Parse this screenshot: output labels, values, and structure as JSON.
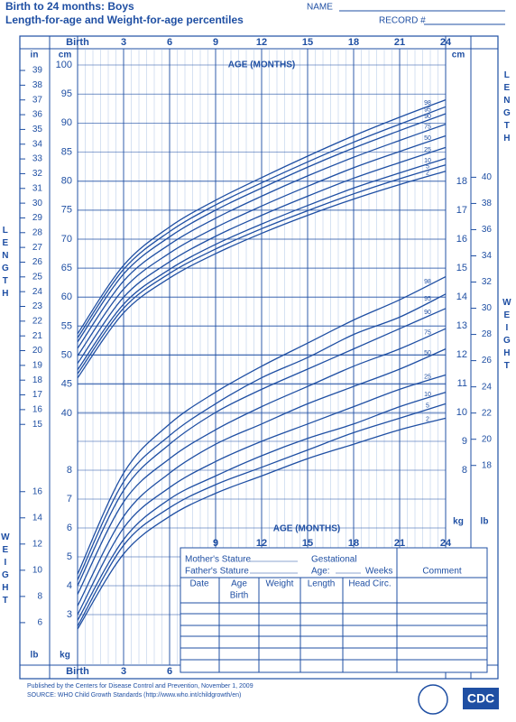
{
  "form": {
    "title": "Birth to 24 months: Boys",
    "subtitle": "Length-for-age and Weight-for-age percentiles",
    "name_label": "NAME",
    "record_label": "RECORD #",
    "side_length": "LENGTH",
    "side_weight": "WEIGHT",
    "table": {
      "mothers_stature": "Mother's Stature",
      "fathers_stature": "Father's Stature",
      "gestational": "Gestational",
      "age": "Age:",
      "weeks": "Weeks",
      "comment": "Comment",
      "headers": [
        "Date",
        "Age",
        "Weight",
        "Length",
        "Head Circ."
      ],
      "first_age": "Birth"
    },
    "footer": [
      "Published by the Centers for Disease Control and Prevention, November 1, 2009",
      "SOURCE: WHO Child Growth Standards (http://www.who.int/childgrowth/en)"
    ],
    "logo": "CDC"
  },
  "chart_data": [
    {
      "type": "line",
      "x_label": "AGE (MONTHS)",
      "x": [
        0,
        3,
        6,
        9,
        12,
        15,
        18,
        21,
        24
      ],
      "xlim": [
        0,
        24
      ],
      "xticks": [
        {
          "value": 0,
          "label": "Birth"
        },
        3,
        6,
        9,
        12,
        15,
        18,
        21,
        24
      ],
      "y_unit": "cm",
      "ylim": [
        40,
        100
      ],
      "yticks": [
        40,
        45,
        50,
        55,
        60,
        65,
        70,
        75,
        80,
        85,
        90,
        95,
        100
      ],
      "y2_unit": "in",
      "y2lim": [
        15.748,
        39.37
      ],
      "y2ticks": [
        15,
        16,
        17,
        18,
        19,
        20,
        21,
        22,
        23,
        24,
        25,
        26,
        27,
        28,
        29,
        30,
        31,
        32,
        33,
        34,
        35,
        36,
        37,
        38,
        39
      ],
      "series": [
        {
          "name": "2",
          "color": "#1f4fa3",
          "values": [
            46.1,
            57.3,
            63.3,
            67.5,
            71.0,
            74.1,
            76.9,
            79.4,
            81.7
          ]
        },
        {
          "name": "5",
          "color": "#1f4fa3",
          "values": [
            46.8,
            58.1,
            64.1,
            68.3,
            71.8,
            74.9,
            77.8,
            80.4,
            82.8
          ]
        },
        {
          "name": "10",
          "color": "#1f4fa3",
          "values": [
            47.5,
            58.8,
            64.8,
            69.1,
            72.6,
            75.8,
            78.8,
            81.4,
            83.9
          ]
        },
        {
          "name": "25",
          "color": "#1f4fa3",
          "values": [
            48.6,
            60.0,
            66.1,
            70.5,
            74.1,
            77.4,
            80.5,
            83.2,
            85.8
          ]
        },
        {
          "name": "50",
          "color": "#1f4fa3",
          "values": [
            49.9,
            61.4,
            67.6,
            72.0,
            75.7,
            79.1,
            82.3,
            85.1,
            87.8
          ]
        },
        {
          "name": "75",
          "color": "#1f4fa3",
          "values": [
            51.2,
            62.8,
            69.1,
            73.6,
            77.4,
            80.9,
            84.1,
            87.0,
            89.8
          ]
        },
        {
          "name": "90",
          "color": "#1f4fa3",
          "values": [
            52.3,
            64.0,
            70.4,
            75.0,
            78.8,
            82.4,
            85.7,
            88.7,
            91.6
          ]
        },
        {
          "name": "95",
          "color": "#1f4fa3",
          "values": [
            53.0,
            64.8,
            71.3,
            75.9,
            79.7,
            83.3,
            86.7,
            89.8,
            92.8
          ]
        },
        {
          "name": "98",
          "color": "#1f4fa3",
          "values": [
            53.7,
            65.5,
            72.1,
            76.7,
            80.6,
            84.3,
            87.8,
            91.0,
            94.0
          ]
        }
      ]
    },
    {
      "type": "line",
      "x_label": "AGE (MONTHS)",
      "x": [
        0,
        3,
        6,
        9,
        12,
        15,
        18,
        21,
        24
      ],
      "xlim": [
        0,
        24
      ],
      "xticks": [
        {
          "value": 0,
          "label": "Birth"
        },
        3,
        6,
        9,
        12,
        15,
        18,
        21,
        24
      ],
      "y_unit": "kg",
      "ylim": [
        2,
        18
      ],
      "yticks": [
        3,
        4,
        5,
        6,
        7,
        8,
        9,
        10,
        11,
        12,
        13,
        14,
        15,
        16,
        17,
        18
      ],
      "y2_unit": "lb",
      "y2lim": [
        4.409,
        39.683
      ],
      "y2ticks": [
        6,
        8,
        10,
        12,
        14,
        16,
        18,
        20,
        22,
        24,
        26,
        28,
        30,
        32,
        34,
        36,
        38,
        40
      ],
      "series": [
        {
          "name": "2",
          "color": "#1f4fa3",
          "values": [
            2.5,
            5.1,
            6.4,
            7.2,
            7.8,
            8.4,
            8.9,
            9.4,
            9.8
          ]
        },
        {
          "name": "5",
          "color": "#1f4fa3",
          "values": [
            2.6,
            5.4,
            6.7,
            7.5,
            8.1,
            8.7,
            9.3,
            9.8,
            10.3
          ]
        },
        {
          "name": "10",
          "color": "#1f4fa3",
          "values": [
            2.8,
            5.6,
            7.0,
            7.8,
            8.5,
            9.1,
            9.6,
            10.2,
            10.7
          ]
        },
        {
          "name": "25",
          "color": "#1f4fa3",
          "values": [
            3.0,
            6.0,
            7.4,
            8.3,
            9.0,
            9.6,
            10.2,
            10.8,
            11.3
          ]
        },
        {
          "name": "50",
          "color": "#1f4fa3",
          "values": [
            3.3,
            6.4,
            7.9,
            8.9,
            9.6,
            10.3,
            10.9,
            11.5,
            12.2
          ]
        },
        {
          "name": "75",
          "color": "#1f4fa3",
          "values": [
            3.7,
            6.9,
            8.4,
            9.4,
            10.2,
            10.9,
            11.6,
            12.2,
            12.9
          ]
        },
        {
          "name": "90",
          "color": "#1f4fa3",
          "values": [
            4.0,
            7.3,
            8.9,
            10.0,
            10.8,
            11.5,
            12.2,
            12.9,
            13.6
          ]
        },
        {
          "name": "95",
          "color": "#1f4fa3",
          "values": [
            4.2,
            7.6,
            9.2,
            10.3,
            11.2,
            11.9,
            12.7,
            13.3,
            14.1
          ]
        },
        {
          "name": "98",
          "color": "#1f4fa3",
          "values": [
            4.4,
            7.9,
            9.6,
            10.7,
            11.6,
            12.4,
            13.2,
            13.9,
            14.7
          ]
        }
      ]
    }
  ]
}
